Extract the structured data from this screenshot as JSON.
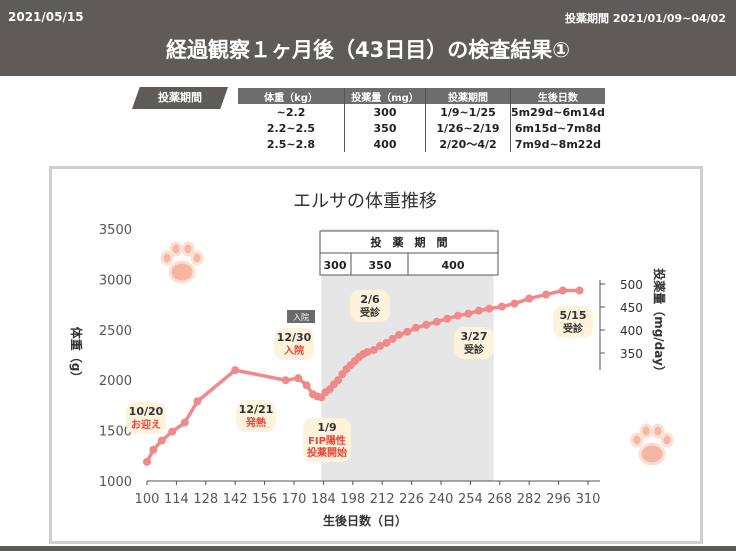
{
  "header": {
    "date": "2021/05/15",
    "period": "投薬期間 2021/01/09~04/02",
    "title": "経過観察１ヶ月後（43日目）の検査結果①"
  },
  "dose_section": {
    "tag": "投薬期間",
    "columns": [
      "体重（kg）",
      "投薬量（mg）",
      "投薬期間",
      "生後日数"
    ],
    "rows": [
      [
        "~2.2",
        "300",
        "1/9~1/25",
        "5m29d~6m14d"
      ],
      [
        "2.2~2.5",
        "350",
        "1/26~2/19",
        "6m15d~7m8d"
      ],
      [
        "2.5~2.8",
        "400",
        "2/20～4/2",
        "7m9d~8m22d"
      ]
    ]
  },
  "colors": {
    "header_bg": "#5e5b59",
    "line": "#f08a8a",
    "shade": "#e6e6e6",
    "callout_bg": "#fdf2dc",
    "callout_red": "#e8453c"
  },
  "icons": [
    "paw-icon",
    "paw-icon"
  ],
  "chart_data": {
    "type": "line",
    "title": "エルサの体重推移",
    "xlabel": "生後日数（日）",
    "ylabel": "体重（g）",
    "y2label": "投薬量（mg/day）",
    "xlim": [
      100,
      310
    ],
    "ylim": [
      1000,
      3500
    ],
    "xticks": [
      100,
      114,
      128,
      142,
      156,
      170,
      184,
      198,
      212,
      226,
      240,
      254,
      268,
      282,
      296,
      310
    ],
    "yticks": [
      1000,
      1500,
      2000,
      2500,
      3000,
      3500
    ],
    "y2ticks": [
      350,
      400,
      450,
      500
    ],
    "grid": false,
    "shaded_range": [
      183,
      265
    ],
    "dose_box": {
      "header": "投　薬　期　間",
      "values": [
        "300",
        "350",
        "400"
      ]
    },
    "series": [
      {
        "x": [
          100,
          103,
          107,
          112,
          118,
          124,
          142,
          166,
          172,
          176,
          179,
          181,
          183,
          185,
          187,
          189,
          191,
          193,
          195,
          197,
          199,
          201,
          203,
          205,
          208,
          211,
          214,
          217,
          220,
          224,
          228,
          233,
          238,
          243,
          248,
          253,
          258,
          263,
          269,
          275,
          282,
          290,
          298,
          306
        ],
        "y": [
          1190,
          1310,
          1400,
          1490,
          1580,
          1790,
          2100,
          2000,
          2020,
          1950,
          1860,
          1840,
          1830,
          1880,
          1910,
          1960,
          2000,
          2060,
          2110,
          2150,
          2190,
          2230,
          2260,
          2280,
          2300,
          2340,
          2370,
          2410,
          2450,
          2480,
          2520,
          2550,
          2580,
          2610,
          2640,
          2660,
          2690,
          2710,
          2730,
          2760,
          2810,
          2850,
          2890,
          2890
        ]
      }
    ],
    "annotations": [
      {
        "x": 100,
        "y": 1190,
        "label": "10/20",
        "note": "お迎え"
      },
      {
        "x": 142,
        "y": 2100,
        "label": "12/21",
        "note": "発熱"
      },
      {
        "x": 172,
        "y": 2020,
        "label": "12/30",
        "note": "入院",
        "tag": "入院"
      },
      {
        "x": 183,
        "y": 1830,
        "label": "1/9",
        "note": "FIP陽性 投薬開始"
      },
      {
        "x": 211,
        "y": 2340,
        "label": "2/6",
        "note": "受診"
      },
      {
        "x": 259,
        "y": 2690,
        "label": "3/27",
        "note": "受診"
      },
      {
        "x": 306,
        "y": 2890,
        "label": "5/15",
        "note": "受診"
      }
    ]
  }
}
